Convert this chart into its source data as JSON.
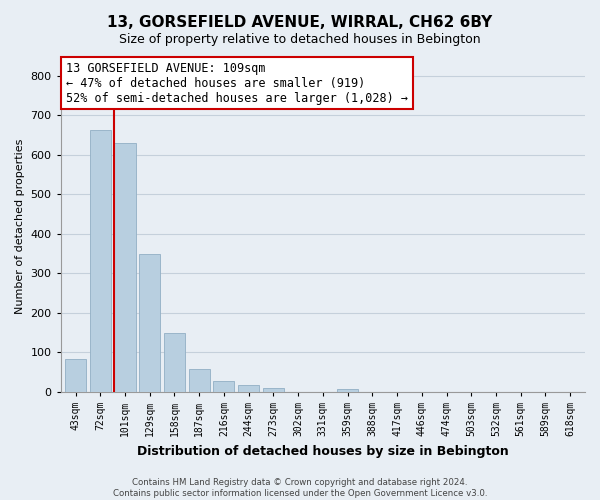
{
  "title": "13, GORSEFIELD AVENUE, WIRRAL, CH62 6BY",
  "subtitle": "Size of property relative to detached houses in Bebington",
  "bar_labels": [
    "43sqm",
    "72sqm",
    "101sqm",
    "129sqm",
    "158sqm",
    "187sqm",
    "216sqm",
    "244sqm",
    "273sqm",
    "302sqm",
    "331sqm",
    "359sqm",
    "388sqm",
    "417sqm",
    "446sqm",
    "474sqm",
    "503sqm",
    "532sqm",
    "561sqm",
    "589sqm",
    "618sqm"
  ],
  "bar_values": [
    82,
    663,
    630,
    348,
    148,
    57,
    27,
    18,
    10,
    0,
    0,
    8,
    0,
    0,
    0,
    0,
    0,
    0,
    0,
    0,
    0
  ],
  "bar_color": "#b8cfe0",
  "bar_edge_color": "#92afc5",
  "vline_color": "#cc0000",
  "vline_x_index": 2,
  "ylim": [
    0,
    840
  ],
  "yticks": [
    0,
    100,
    200,
    300,
    400,
    500,
    600,
    700,
    800
  ],
  "ylabel": "Number of detached properties",
  "xlabel": "Distribution of detached houses by size in Bebington",
  "annotation_line1": "13 GORSEFIELD AVENUE: 109sqm",
  "annotation_line2": "← 47% of detached houses are smaller (919)",
  "annotation_line3": "52% of semi-detached houses are larger (1,028) →",
  "footer_line1": "Contains HM Land Registry data © Crown copyright and database right 2024.",
  "footer_line2": "Contains public sector information licensed under the Open Government Licence v3.0.",
  "fig_bg_color": "#e8eef4",
  "plot_bg_color": "#e8eef4",
  "grid_color": "#c5d0db",
  "title_fontsize": 11,
  "subtitle_fontsize": 9
}
